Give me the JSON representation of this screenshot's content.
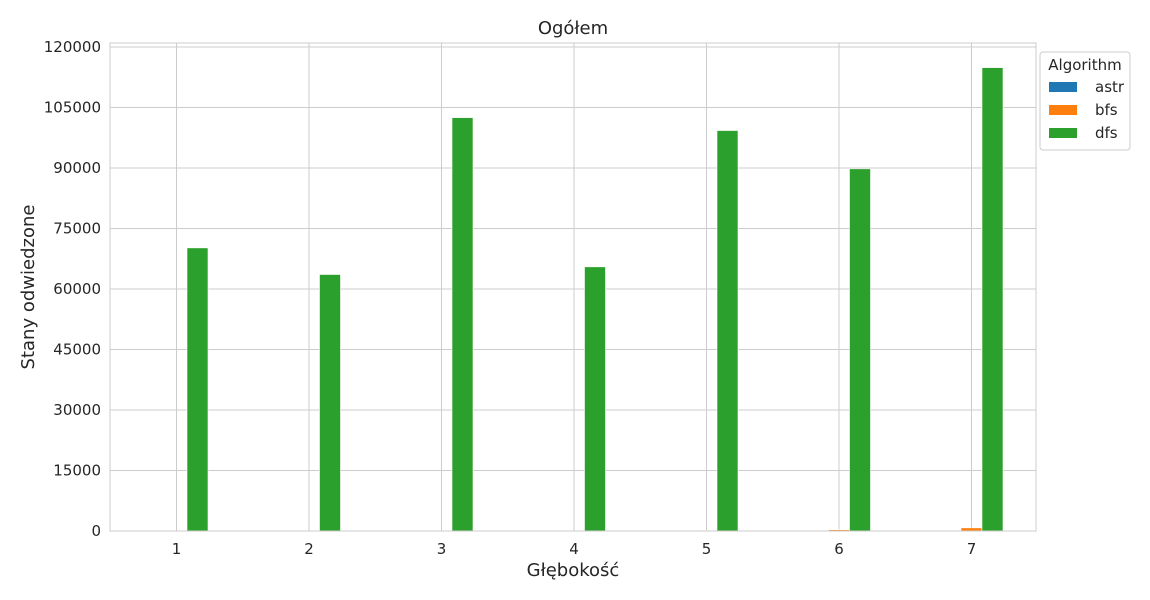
{
  "chart_data": {
    "type": "bar",
    "title": "Ogółem",
    "xlabel": "Głębokość",
    "ylabel": "Stany odwiedzone",
    "categories": [
      "1",
      "2",
      "3",
      "4",
      "5",
      "6",
      "7"
    ],
    "ylim": [
      0,
      121000
    ],
    "yticks": [
      0,
      15000,
      30000,
      45000,
      60000,
      75000,
      90000,
      105000,
      120000
    ],
    "ytick_labels": [
      "0",
      "15000",
      "30000",
      "45000",
      "60000",
      "75000",
      "90000",
      "105000",
      "120000"
    ],
    "grid": true,
    "legend": {
      "title": "Algorithm",
      "placement": "upper-right-outside"
    },
    "series": [
      {
        "name": "astr",
        "color": "#1f77b4",
        "values": [
          3,
          6,
          10,
          16,
          25,
          40,
          60
        ]
      },
      {
        "name": "bfs",
        "color": "#ff7f0e",
        "values": [
          4,
          10,
          25,
          60,
          140,
          320,
          780
        ]
      },
      {
        "name": "dfs",
        "color": "#2ca02c",
        "values": [
          70200,
          63600,
          102500,
          65500,
          99300,
          89800,
          114900
        ]
      }
    ]
  }
}
